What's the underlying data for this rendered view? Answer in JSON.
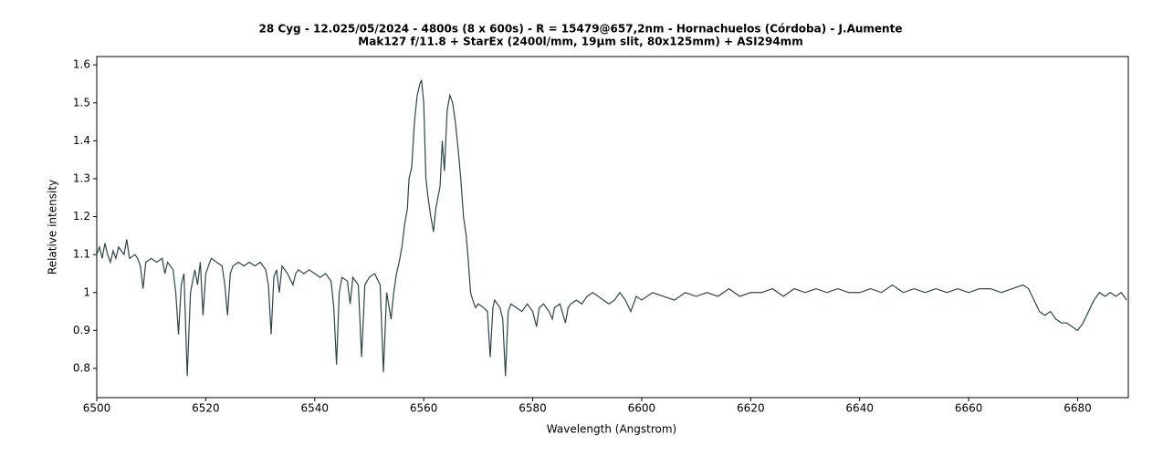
{
  "chart_data": {
    "type": "line",
    "title": "28 Cyg - 12.025/05/2024 - 4800s (8 x 600s) - R = 15479@657,2nm - Hornachuelos (Córdoba) - J.Aumente",
    "subtitle": "Mak127 f/11.8 + StarEx (2400l/mm, 19µm slit, 80x125mm) + ASI294mm",
    "xlabel": "Wavelength (Angstrom)",
    "ylabel": "Relative intensity",
    "xlim": [
      6500,
      6689.3
    ],
    "ylim": [
      0.723,
      1.622
    ],
    "xticks": [
      6500,
      6520,
      6540,
      6560,
      6580,
      6600,
      6620,
      6640,
      6660,
      6680
    ],
    "yticks": [
      0.8,
      0.9,
      1,
      1.1,
      1.2,
      1.3,
      1.4,
      1.5,
      1.6
    ],
    "color": "#2f4545",
    "x": [
      6500,
      6500.5,
      6501,
      6501.5,
      6502,
      6502.5,
      6503,
      6503.5,
      6504,
      6505,
      6505.5,
      6506,
      6507,
      6507.5,
      6508,
      6508.5,
      6509,
      6510,
      6511,
      6512,
      6512.5,
      6513,
      6514,
      6514.5,
      6515,
      6515.5,
      6516,
      6516.6,
      6517.2,
      6518,
      6518.5,
      6519,
      6519.5,
      6520,
      6521,
      6522,
      6523,
      6523.5,
      6524,
      6524.5,
      6525,
      6526,
      6527,
      6528,
      6529,
      6530,
      6531,
      6531.5,
      6532,
      6532.5,
      6533,
      6533.5,
      6534,
      6535,
      6536,
      6536.5,
      6537,
      6538,
      6539,
      6540,
      6541,
      6542,
      6543,
      6543.5,
      6544,
      6544.5,
      6545,
      6546,
      6546.5,
      6547,
      6548,
      6548.6,
      6549.2,
      6550,
      6551,
      6552,
      6552.6,
      6553.2,
      6554,
      6554.5,
      6555,
      6555.5,
      6556,
      6556.5,
      6557,
      6557.3,
      6557.8,
      6558.3,
      6558.8,
      6559.3,
      6559.6,
      6560,
      6560.4,
      6560.8,
      6561.3,
      6561.8,
      6562.2,
      6562.6,
      6563,
      6563.4,
      6563.8,
      6564.3,
      6564.8,
      6565.3,
      6565.8,
      6566.3,
      6566.8,
      6567.3,
      6567.8,
      6568.2,
      6568.6,
      6569,
      6569.5,
      6570,
      6571,
      6571.7,
      6572.2,
      6572.7,
      6573,
      6574,
      6574.5,
      6575,
      6575.5,
      6576,
      6577,
      6578,
      6579,
      6580,
      6580.7,
      6581.2,
      6582,
      6583,
      6583.6,
      6584,
      6585,
      6586,
      6586.5,
      6587,
      6588,
      6589,
      6590,
      6591,
      6592,
      6593,
      6594,
      6595,
      6596,
      6597,
      6598,
      6599,
      6600,
      6602,
      6604,
      6606,
      6608,
      6610,
      6612,
      6614,
      6616,
      6618,
      6620,
      6622,
      6624,
      6626,
      6628,
      6630,
      6632,
      6634,
      6636,
      6638,
      6640,
      6642,
      6644,
      6646,
      6648,
      6650,
      6652,
      6654,
      6656,
      6658,
      6660,
      6662,
      6664,
      6666,
      6668,
      6670,
      6671,
      6672,
      6673,
      6674,
      6675,
      6676,
      6677,
      6678,
      6679,
      6680,
      6681,
      6682,
      6683,
      6684,
      6685,
      6686,
      6687,
      6688,
      6689
    ],
    "values": [
      1.1,
      1.12,
      1.09,
      1.13,
      1.1,
      1.08,
      1.11,
      1.09,
      1.12,
      1.1,
      1.14,
      1.09,
      1.1,
      1.09,
      1.07,
      1.01,
      1.08,
      1.09,
      1.08,
      1.09,
      1.05,
      1.08,
      1.06,
      1.0,
      0.89,
      1.02,
      1.05,
      0.78,
      1.0,
      1.06,
      1.02,
      1.08,
      0.94,
      1.05,
      1.09,
      1.08,
      1.07,
      1.02,
      0.94,
      1.05,
      1.07,
      1.08,
      1.07,
      1.08,
      1.07,
      1.08,
      1.06,
      1.02,
      0.89,
      1.04,
      1.06,
      1.0,
      1.07,
      1.05,
      1.02,
      1.05,
      1.06,
      1.05,
      1.06,
      1.05,
      1.04,
      1.05,
      1.03,
      0.96,
      0.81,
      1.0,
      1.04,
      1.03,
      0.97,
      1.04,
      1.02,
      0.83,
      1.02,
      1.04,
      1.05,
      1.02,
      0.79,
      1.0,
      0.93,
      1.0,
      1.05,
      1.08,
      1.12,
      1.18,
      1.22,
      1.3,
      1.33,
      1.45,
      1.52,
      1.55,
      1.56,
      1.5,
      1.3,
      1.25,
      1.2,
      1.16,
      1.22,
      1.25,
      1.28,
      1.4,
      1.32,
      1.48,
      1.52,
      1.5,
      1.45,
      1.38,
      1.3,
      1.2,
      1.15,
      1.08,
      1.0,
      0.98,
      0.96,
      0.97,
      0.96,
      0.95,
      0.83,
      0.96,
      0.98,
      0.96,
      0.93,
      0.78,
      0.95,
      0.97,
      0.96,
      0.95,
      0.97,
      0.95,
      0.91,
      0.96,
      0.97,
      0.95,
      0.93,
      0.96,
      0.97,
      0.92,
      0.96,
      0.97,
      0.98,
      0.97,
      0.99,
      1.0,
      0.99,
      0.98,
      0.97,
      0.98,
      1.0,
      0.98,
      0.95,
      0.99,
      0.98,
      1.0,
      0.99,
      0.98,
      1.0,
      0.99,
      1.0,
      0.99,
      1.01,
      0.99,
      1.0,
      1.0,
      1.01,
      0.99,
      1.01,
      1.0,
      1.01,
      1.0,
      1.01,
      1.0,
      1.0,
      1.01,
      1.0,
      1.02,
      1.0,
      1.01,
      1.0,
      1.01,
      1.0,
      1.01,
      1.0,
      1.01,
      1.01,
      1.0,
      1.01,
      1.02,
      1.01,
      0.98,
      0.95,
      0.94,
      0.95,
      0.93,
      0.92,
      0.92,
      0.91,
      0.9,
      0.92,
      0.95,
      0.98,
      1.0,
      0.99,
      1.0,
      0.99,
      1.0,
      0.98
    ]
  }
}
